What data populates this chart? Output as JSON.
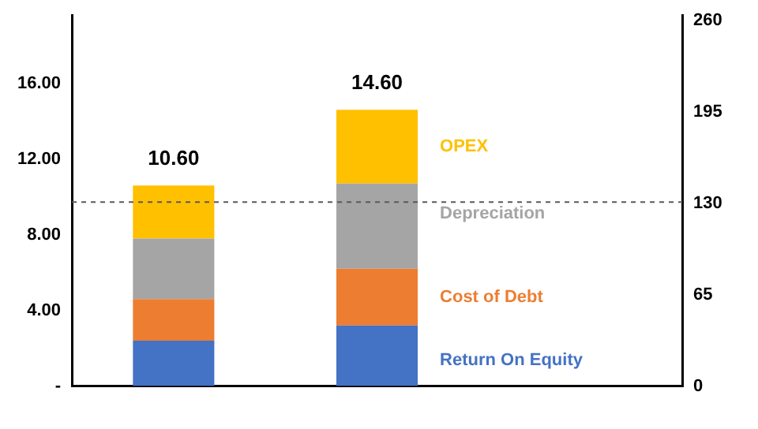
{
  "chart_data": {
    "type": "bar",
    "stacked": true,
    "categories": [
      null,
      null
    ],
    "series": [
      {
        "name": "Return On Equity",
        "color": "#4472c4",
        "values": [
          2.4,
          3.2
        ]
      },
      {
        "name": "Cost of Debt",
        "color": "#ed7d31",
        "values": [
          2.2,
          3.0
        ]
      },
      {
        "name": "Depreciation",
        "color": "#a5a5a5",
        "values": [
          3.2,
          4.5
        ]
      },
      {
        "name": "OPEX",
        "color": "#ffc000",
        "values": [
          2.8,
          3.9
        ]
      }
    ],
    "totals": [
      "10.60",
      "14.60"
    ],
    "ylim": [
      0,
      19.6
    ],
    "yticks": [
      {
        "value": 0,
        "label": "-"
      },
      {
        "value": 4,
        "label": "4.00"
      },
      {
        "value": 8,
        "label": "8.00"
      },
      {
        "value": 12,
        "label": "12.00"
      },
      {
        "value": 16,
        "label": "16.00"
      }
    ],
    "y2lim": [
      0,
      264
    ],
    "y2ticks": [
      0,
      65,
      130,
      195,
      260
    ],
    "ref_lines": [
      {
        "axis": "y2",
        "value": 131,
        "color": "#595959",
        "line_style": "dashed"
      }
    ],
    "grid": false,
    "legend": false
  }
}
